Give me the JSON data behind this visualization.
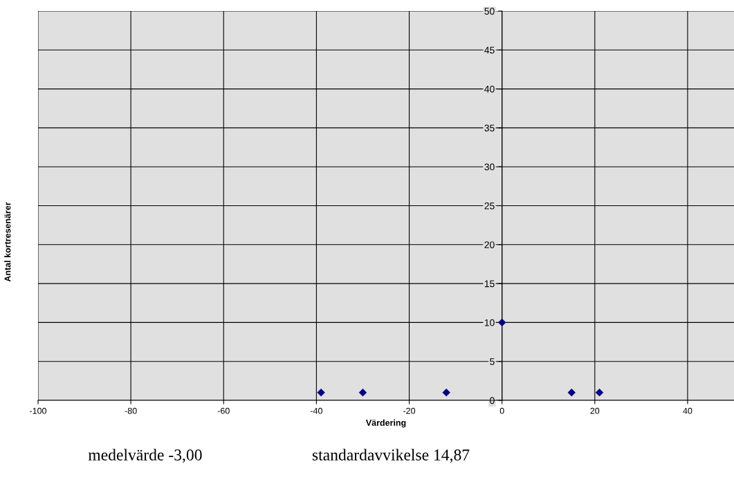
{
  "chart_data": {
    "type": "scatter",
    "xlabel": "Värdering",
    "ylabel": "Antal kortresenärer",
    "x": [
      -39,
      -30,
      -12,
      0,
      15,
      21
    ],
    "series": [
      {
        "color": "#000080",
        "values": [
          1,
          1,
          1,
          10,
          1,
          1
        ]
      }
    ],
    "marker": "diamond",
    "grid": true,
    "xlim": [
      -100,
      50
    ],
    "xticks": [
      -100,
      -80,
      -60,
      -40,
      -20,
      0,
      20,
      40
    ],
    "ylim": [
      0,
      50
    ],
    "yticks": [
      0,
      5,
      10,
      15,
      20,
      25,
      30,
      35,
      40,
      45,
      50
    ],
    "annotations": [
      "medelvärde -3,00",
      "standardavvikelse 14,87"
    ]
  }
}
